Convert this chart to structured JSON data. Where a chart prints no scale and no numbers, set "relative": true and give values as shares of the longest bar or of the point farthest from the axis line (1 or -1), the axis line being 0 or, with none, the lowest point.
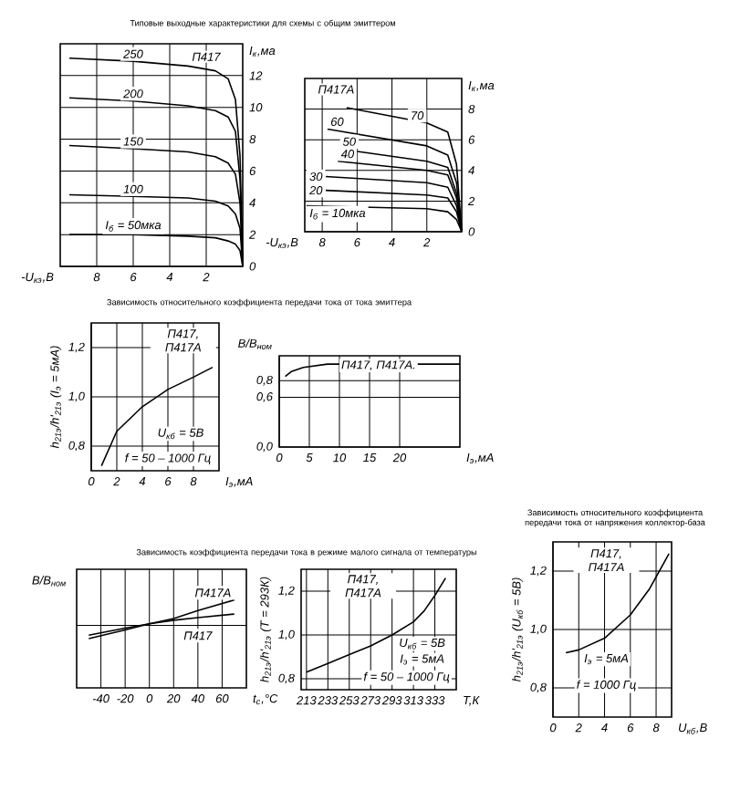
{
  "chart_data": [
    {
      "type": "line",
      "title": "Типовые выходные характеристики для схемы с общим эмиттером",
      "xlabel": "-U$_{кэ}$,В",
      "ylabel": "I$_{к}$,ма",
      "xlim": [
        10,
        0
      ],
      "xticks": [
        8,
        6,
        4,
        2
      ],
      "ylim": [
        0,
        14
      ],
      "yticks": [
        0,
        2,
        4,
        6,
        8,
        10,
        12
      ],
      "grid": true,
      "annotations": [
        "П417"
      ],
      "x": [
        9.5,
        6,
        3,
        1.5,
        0.8,
        0.4,
        0.15,
        0
      ],
      "series": [
        {
          "name": "250",
          "color": "#000000",
          "values": [
            13.1,
            12.9,
            12.6,
            12.3,
            11.8,
            10.5,
            7,
            0
          ]
        },
        {
          "name": "200",
          "color": "#000000",
          "values": [
            10.6,
            10.4,
            10.1,
            9.8,
            9.4,
            8.5,
            5.5,
            0
          ]
        },
        {
          "name": "150",
          "color": "#000000",
          "values": [
            7.6,
            7.4,
            7.2,
            6.9,
            6.5,
            5.8,
            4,
            0
          ]
        },
        {
          "name": "100",
          "color": "#000000",
          "values": [
            4.5,
            4.4,
            4.3,
            4.1,
            3.8,
            3.3,
            2.4,
            0
          ]
        },
        {
          "name": "I$_{б}$ = 50мка",
          "color": "#000000",
          "values": [
            2.0,
            2.0,
            1.9,
            1.8,
            1.6,
            1.4,
            1.0,
            0
          ]
        }
      ]
    },
    {
      "type": "line",
      "xlabel": "-U$_{кэ}$,В",
      "ylabel": "I$_{к}$,ма",
      "xlim": [
        9,
        0
      ],
      "xticks": [
        8,
        6,
        4,
        2
      ],
      "ylim": [
        0,
        10
      ],
      "yticks": [
        0,
        2,
        4,
        6,
        8
      ],
      "grid": true,
      "annotations": [
        "П417А"
      ],
      "series": [
        {
          "name": "70",
          "color": "#000000",
          "x": [
            6.6,
            2,
            0.8,
            0.3,
            0
          ],
          "values": [
            8.1,
            7.1,
            6.5,
            4.4,
            0
          ]
        },
        {
          "name": "60",
          "color": "#000000",
          "x": [
            7.7,
            2,
            0.8,
            0.3,
            0
          ],
          "values": [
            6.7,
            5.6,
            5.0,
            3.2,
            0
          ]
        },
        {
          "name": "50",
          "color": "#000000",
          "x": [
            7.0,
            2,
            0.8,
            0.3,
            0
          ],
          "values": [
            5.4,
            4.6,
            4.2,
            2.5,
            0
          ]
        },
        {
          "name": "40",
          "color": "#000000",
          "x": [
            7.1,
            2,
            0.8,
            0.3,
            0
          ],
          "values": [
            4.6,
            4.0,
            3.7,
            2.2,
            0
          ]
        },
        {
          "name": "30",
          "color": "#000000",
          "x": [
            7.8,
            2,
            0.8,
            0.3,
            0
          ],
          "values": [
            3.6,
            3.2,
            2.9,
            1.7,
            0
          ]
        },
        {
          "name": "20",
          "color": "#000000",
          "x": [
            7.8,
            2,
            0.8,
            0.3,
            0
          ],
          "values": [
            2.7,
            2.4,
            2.2,
            1.3,
            0
          ]
        },
        {
          "name": "I$_{б}$ = 10мка",
          "color": "#000000",
          "x": [
            8.9,
            2,
            0.8,
            0.3,
            0
          ],
          "values": [
            1.7,
            1.5,
            1.3,
            0.8,
            0
          ]
        }
      ]
    },
    {
      "type": "line",
      "title": "Зависимость относительного коэффициента передачи тока от тока эмиттера",
      "xlabel": "I$_{э}$,мА",
      "ylabel": "h$_{21э}$/h'$_{21э}$ (I$_{э}$ = 5мА)",
      "xlim": [
        0,
        10
      ],
      "xticks": [
        0,
        2,
        4,
        6,
        8
      ],
      "ylim": [
        0.7,
        1.3
      ],
      "yticks": [
        {
          "value": 0.8,
          "label": "0,8"
        },
        {
          "value": 1.0,
          "label": "1,0"
        },
        {
          "value": 1.2,
          "label": "1,2"
        }
      ],
      "grid": true,
      "annotations": [
        "П417, П417А",
        "U$_{кб}$ = 5В",
        "f = 50 – 1000 Гц"
      ],
      "series": [
        {
          "color": "#000000",
          "x": [
            0.8,
            2,
            4,
            6,
            8,
            9.5
          ],
          "values": [
            0.72,
            0.86,
            0.96,
            1.03,
            1.08,
            1.12
          ]
        }
      ]
    },
    {
      "type": "line",
      "ylabel": "B/B$_{ном}$",
      "xlabel": "I$_{э}$,мА",
      "xlim": [
        0,
        30
      ],
      "xticks": [
        0,
        5,
        10,
        15,
        20
      ],
      "ylim": [
        0,
        1.1
      ],
      "yticks": [
        {
          "value": 0,
          "label": "0,0"
        },
        {
          "value": 0.6,
          "label": "0,6"
        },
        {
          "value": 0.8,
          "label": "0,8"
        }
      ],
      "grid": true,
      "annotations": [
        "П417, П417А."
      ],
      "series": [
        {
          "color": "#000000",
          "x": [
            1,
            2,
            4,
            6,
            8,
            30
          ],
          "values": [
            0.85,
            0.91,
            0.96,
            0.98,
            1.0,
            1.0
          ]
        }
      ]
    },
    {
      "type": "line",
      "title": "Зависимость коэффициента передачи тока в режиме малого сигнала от температуры",
      "ylabel": "B/B$_{ном}$",
      "xlabel": "t$_{c}$,°С",
      "relative": true,
      "xlim": [
        -60,
        80
      ],
      "xticks": [
        -40,
        -20,
        0,
        20,
        40,
        60
      ],
      "grid": "x",
      "ref_lines": [
        {
          "axis": "y",
          "value": 0.71
        }
      ],
      "x": [
        -50,
        -20,
        0,
        20,
        40,
        70
      ],
      "series": [
        {
          "name": "П417А",
          "color": "#000000",
          "values": [
            0.56,
            0.66,
            0.73,
            0.79,
            0.88,
            1.0
          ]
        },
        {
          "name": "П417",
          "color": "#000000",
          "values": [
            0.6,
            0.68,
            0.73,
            0.77,
            0.8,
            0.84
          ]
        }
      ]
    },
    {
      "type": "line",
      "xlabel": "T,К",
      "ylabel": "h$_{21э}$/h'$_{21э}$ (T = 293К)",
      "xlim": [
        208,
        353
      ],
      "xticks": [
        213,
        233,
        253,
        273,
        293,
        313,
        333
      ],
      "ylim": [
        0.75,
        1.3
      ],
      "yticks": [
        {
          "value": 0.8,
          "label": "0,8"
        },
        {
          "value": 1.0,
          "label": "1,0"
        },
        {
          "value": 1.2,
          "label": "1,2"
        }
      ],
      "grid": true,
      "annotations": [
        "П417, П417А",
        "U$_{кб}$ = 5В",
        "I$_{э}$ = 5мА",
        "f = 50 – 1000 Гц"
      ],
      "series": [
        {
          "color": "#000000",
          "x": [
            213,
            233,
            253,
            273,
            293,
            313,
            323,
            333,
            343
          ],
          "values": [
            0.83,
            0.87,
            0.91,
            0.95,
            1.0,
            1.06,
            1.11,
            1.18,
            1.26
          ]
        }
      ]
    },
    {
      "type": "line",
      "title": "Зависимость относительного коэффициента передачи тока от напряжения коллектор-база",
      "xlabel": "U$_{кб}$,В",
      "ylabel": "h$_{21э}$/h'$_{21э}$ (U$_{кб}$ = 5В)",
      "xlim": [
        0,
        9.2
      ],
      "xticks": [
        0,
        2,
        4,
        6,
        8
      ],
      "ylim": [
        0.7,
        1.3
      ],
      "yticks": [
        {
          "value": 0.8,
          "label": "0,8"
        },
        {
          "value": 1.0,
          "label": "1,0"
        },
        {
          "value": 1.2,
          "label": "1,2"
        }
      ],
      "grid": true,
      "annotations": [
        "П417, П417А",
        "I$_{э}$ = 5мА",
        "f = 1000 Гц"
      ],
      "series": [
        {
          "color": "#000000",
          "x": [
            1,
            2,
            4,
            6,
            7.5,
            9
          ],
          "values": [
            0.92,
            0.93,
            0.97,
            1.05,
            1.14,
            1.26
          ]
        }
      ]
    }
  ]
}
